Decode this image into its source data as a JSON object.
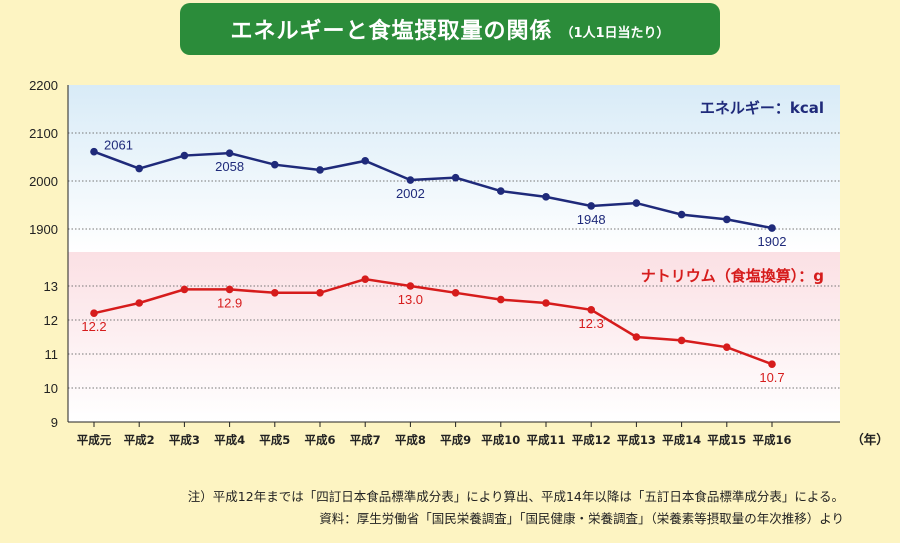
{
  "title": {
    "main": "エネルギーと食塩摂取量の関係",
    "sub": "（1人1日当たり）"
  },
  "colors": {
    "energy": "#1f2a7a",
    "sodium": "#d61c1c",
    "energy_bg": "#d8ebf7",
    "sodium_bg": "#fbe0e4",
    "header_bg": "#2b8c3a",
    "page_bg": "#fdf4c2"
  },
  "year_unit": "（年）",
  "notes": [
    "注）平成12年までは「四訂日本食品標準成分表」により算出、平成14年以降は「五訂日本食品標準成分表」による。",
    "資料：厚生労働省「国民栄養調査」「国民健康・栄養調査」（栄養素等摂取量の年次推移）より"
  ],
  "chart_data": {
    "type": "line",
    "categories": [
      "平成元",
      "平成2",
      "平成3",
      "平成4",
      "平成5",
      "平成6",
      "平成7",
      "平成8",
      "平成9",
      "平成10",
      "平成11",
      "平成12",
      "平成13",
      "平成14",
      "平成15",
      "平成16"
    ],
    "panels": [
      {
        "name": "エネルギー：kcal",
        "values": [
          2061,
          2026,
          2053,
          2058,
          2034,
          2023,
          2042,
          2002,
          2007,
          1979,
          1967,
          1948,
          1954,
          1930,
          1920,
          1902
        ],
        "labels": [
          {
            "i": 0,
            "text": "2061",
            "pos": "above"
          },
          {
            "i": 3,
            "text": "2058",
            "pos": "below"
          },
          {
            "i": 7,
            "text": "2002",
            "pos": "below"
          },
          {
            "i": 11,
            "text": "1948",
            "pos": "below"
          },
          {
            "i": 15,
            "text": "1902",
            "pos": "below"
          }
        ],
        "ylim": [
          1850,
          2200
        ],
        "yticks": [
          "1900",
          "2000",
          "2100",
          "2200"
        ],
        "tick_values": [
          1900,
          2000,
          2100,
          2200
        ]
      },
      {
        "name": "ナトリウム（食塩換算）：g",
        "values": [
          12.2,
          12.5,
          12.9,
          12.9,
          12.8,
          12.8,
          13.2,
          13.0,
          12.8,
          12.6,
          12.5,
          12.3,
          11.5,
          11.4,
          11.2,
          10.7
        ],
        "labels": [
          {
            "i": 0,
            "text": "12.2",
            "pos": "below"
          },
          {
            "i": 3,
            "text": "12.9",
            "pos": "below"
          },
          {
            "i": 7,
            "text": "13.0",
            "pos": "below"
          },
          {
            "i": 11,
            "text": "12.3",
            "pos": "below"
          },
          {
            "i": 15,
            "text": "10.7",
            "pos": "below"
          }
        ],
        "ylim": [
          9,
          14
        ],
        "yticks": [
          "9",
          "10",
          "11",
          "12",
          "13"
        ],
        "tick_values": [
          9,
          10,
          11,
          12,
          13
        ]
      }
    ],
    "grid": true
  }
}
